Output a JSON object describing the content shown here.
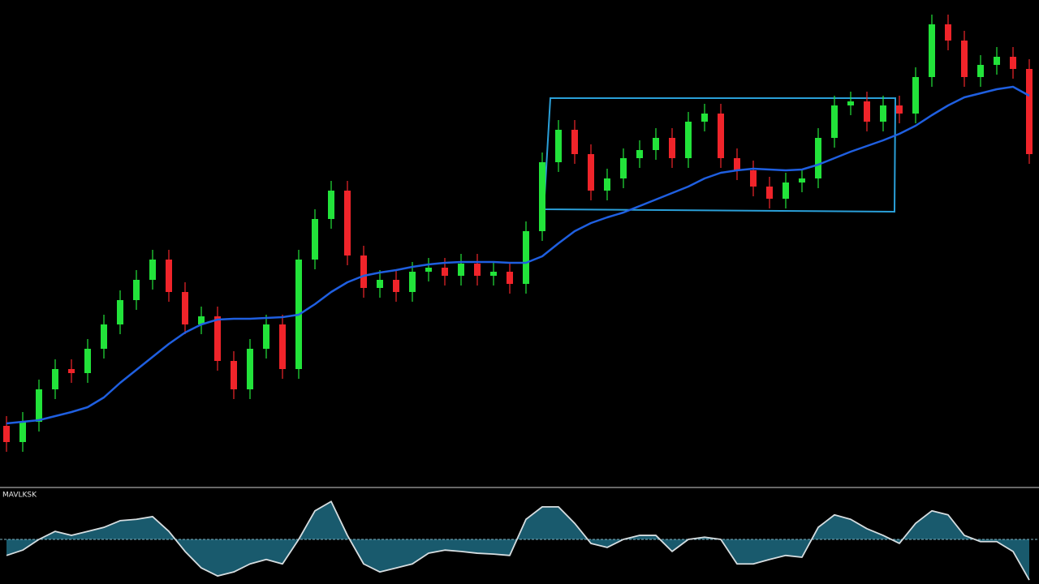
{
  "chart_data": [
    {
      "type": "candlestick",
      "ylim": [
        0,
        600
      ],
      "up_color": "#22e33a",
      "down_color": "#f0242a",
      "open": [
        75,
        55,
        80,
        120,
        145,
        140,
        170,
        200,
        230,
        255,
        280,
        240,
        200,
        210,
        155,
        120,
        170,
        200,
        145,
        280,
        330,
        365,
        285,
        245,
        255,
        240,
        265,
        270,
        260,
        275,
        260,
        265,
        250,
        315,
        400,
        440,
        410,
        365,
        380,
        405,
        415,
        430,
        405,
        450,
        460,
        405,
        390,
        370,
        355,
        375,
        380,
        430,
        470,
        475,
        450,
        470,
        460,
        505,
        570,
        550,
        505,
        520,
        530,
        515
      ],
      "high": [
        87,
        92,
        132,
        157,
        157,
        182,
        212,
        242,
        267,
        292,
        292,
        252,
        222,
        222,
        167,
        182,
        212,
        212,
        292,
        342,
        377,
        377,
        297,
        267,
        267,
        277,
        282,
        282,
        287,
        287,
        277,
        277,
        327,
        412,
        452,
        452,
        422,
        392,
        417,
        427,
        442,
        442,
        462,
        472,
        472,
        417,
        402,
        382,
        387,
        392,
        442,
        482,
        487,
        487,
        482,
        482,
        517,
        582,
        582,
        562,
        532,
        542,
        542,
        527
      ],
      "low": [
        43,
        43,
        68,
        108,
        128,
        128,
        158,
        188,
        218,
        243,
        228,
        188,
        188,
        143,
        108,
        108,
        158,
        133,
        133,
        268,
        318,
        273,
        233,
        233,
        228,
        228,
        253,
        248,
        248,
        248,
        248,
        238,
        238,
        303,
        388,
        398,
        353,
        353,
        368,
        393,
        403,
        393,
        393,
        438,
        393,
        378,
        358,
        343,
        343,
        363,
        368,
        418,
        458,
        438,
        438,
        448,
        448,
        493,
        538,
        493,
        493,
        508,
        503,
        398
      ],
      "close": [
        55,
        80,
        120,
        145,
        140,
        170,
        200,
        230,
        255,
        280,
        240,
        200,
        210,
        155,
        120,
        170,
        200,
        145,
        280,
        330,
        365,
        285,
        245,
        255,
        240,
        265,
        270,
        260,
        275,
        260,
        265,
        250,
        315,
        400,
        440,
        410,
        365,
        380,
        405,
        415,
        430,
        405,
        450,
        460,
        405,
        390,
        370,
        355,
        375,
        380,
        430,
        470,
        475,
        450,
        470,
        460,
        505,
        570,
        550,
        505,
        520,
        530,
        515,
        410
      ],
      "ma": {
        "color": "#1f5fe0",
        "values": [
          78,
          80,
          82,
          87,
          92,
          98,
          110,
          128,
          144,
          160,
          176,
          190,
          200,
          206,
          207,
          207,
          208,
          209,
          212,
          225,
          240,
          252,
          260,
          264,
          267,
          271,
          274,
          276,
          277,
          277,
          277,
          276,
          276,
          284,
          300,
          315,
          325,
          332,
          338,
          346,
          354,
          362,
          370,
          380,
          387,
          390,
          392,
          391,
          390,
          391,
          397,
          405,
          413,
          420,
          427,
          435,
          445,
          458,
          470,
          480,
          485,
          490,
          493,
          482
        ]
      }
    },
    {
      "type": "area",
      "title": "MAVLKSK",
      "ylim": [
        -1,
        1
      ],
      "color": "#d6dde0",
      "fill": "#1d6a80",
      "values": [
        -0.36,
        -0.24,
        0,
        0.18,
        0.09,
        0.18,
        0.27,
        0.42,
        0.45,
        0.51,
        0.18,
        -0.27,
        -0.64,
        -0.82,
        -0.73,
        -0.55,
        -0.45,
        -0.55,
        0,
        0.64,
        0.85,
        0.09,
        -0.55,
        -0.73,
        -0.64,
        -0.55,
        -0.31,
        -0.24,
        -0.27,
        -0.31,
        -0.33,
        -0.36,
        0.45,
        0.73,
        0.73,
        0.36,
        -0.09,
        -0.18,
        0,
        0.09,
        0.09,
        -0.27,
        0,
        0.05,
        0,
        -0.55,
        -0.55,
        -0.45,
        -0.36,
        -0.4,
        0.27,
        0.55,
        0.45,
        0.24,
        0.09,
        -0.09,
        0.36,
        0.64,
        0.55,
        0.09,
        -0.05,
        -0.05,
        -0.27,
        -0.91
      ]
    }
  ]
}
